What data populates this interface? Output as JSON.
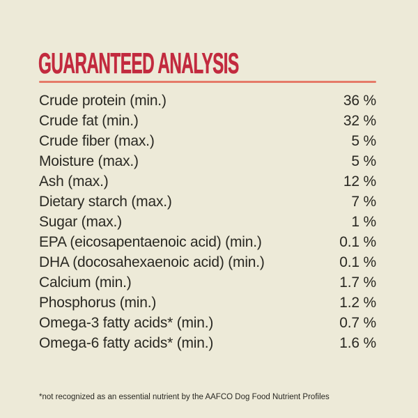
{
  "page": {
    "background_color": "#EDEAD8",
    "accent_red": "#C22A3E",
    "rule_salmon": "#E57A68",
    "text_color": "#292822"
  },
  "header": {
    "title": "GUARANTEED ANALYSIS"
  },
  "table": {
    "rows": [
      {
        "label": "Crude protein (min.)",
        "value": "36 %"
      },
      {
        "label": "Crude fat (min.)",
        "value": "32 %"
      },
      {
        "label": "Crude fiber (max.)",
        "value": "5 %"
      },
      {
        "label": "Moisture (max.)",
        "value": "5 %"
      },
      {
        "label": "Ash (max.)",
        "value": "12 %"
      },
      {
        "label": "Dietary starch (max.)",
        "value": "7 %"
      },
      {
        "label": "Sugar (max.)",
        "value": "1 %"
      },
      {
        "label": "EPA (eicosapentaenoic acid) (min.)",
        "value": "0.1 %"
      },
      {
        "label": "DHA (docosahexaenoic acid) (min.)",
        "value": "0.1 %"
      },
      {
        "label": "Calcium (min.)",
        "value": "1.7 %"
      },
      {
        "label": "Phosphorus (min.)",
        "value": "1.2 %"
      },
      {
        "label": "Omega-3 fatty acids* (min.)",
        "value": "0.7 %"
      },
      {
        "label": "Omega-6 fatty acids* (min.)",
        "value": "1.6 %"
      }
    ]
  },
  "footnote": {
    "text": "*not recognized as an essential nutrient by the AAFCO Dog Food Nutrient Profiles"
  }
}
